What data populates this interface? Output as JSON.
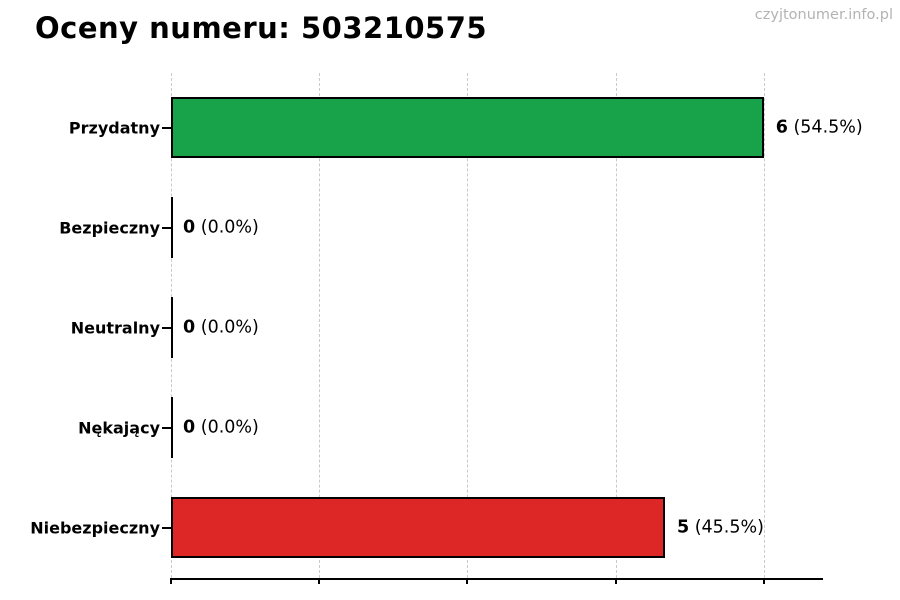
{
  "page": {
    "watermark": "czyjtonumer.info.pl",
    "background": "#ffffff"
  },
  "chart_data": {
    "type": "bar",
    "orientation": "horizontal",
    "title": "Oceny numeru: 503210575",
    "categories": [
      "Przydatny",
      "Bezpieczny",
      "Neutralny",
      "Nękający",
      "Niebezpieczny"
    ],
    "values": [
      6,
      0,
      0,
      0,
      5
    ],
    "percent_labels": [
      "54.5%",
      "0.0%",
      "0.0%",
      "0.0%",
      "45.5%"
    ],
    "value_labels": [
      "6 (54.5%)",
      "0 (0.0%)",
      "0 (0.0%)",
      "0 (0.0%)",
      "5 (45.5%)"
    ],
    "bar_colors": [
      "#18a24a",
      null,
      null,
      null,
      "#dd2626"
    ],
    "bar_edge_color": "#000000",
    "xlim": [
      0,
      6.6
    ],
    "xticks": [
      0,
      1.5,
      3,
      4.5,
      6
    ],
    "xtick_labels_visible": false,
    "grid": true,
    "grid_axis": "x",
    "grid_style": "dashed",
    "grid_color": "#c9c9c9",
    "legend": "none",
    "xlabel": "",
    "ylabel": "",
    "text_color": "#000000",
    "watermark_color": "#b3b3b3"
  }
}
